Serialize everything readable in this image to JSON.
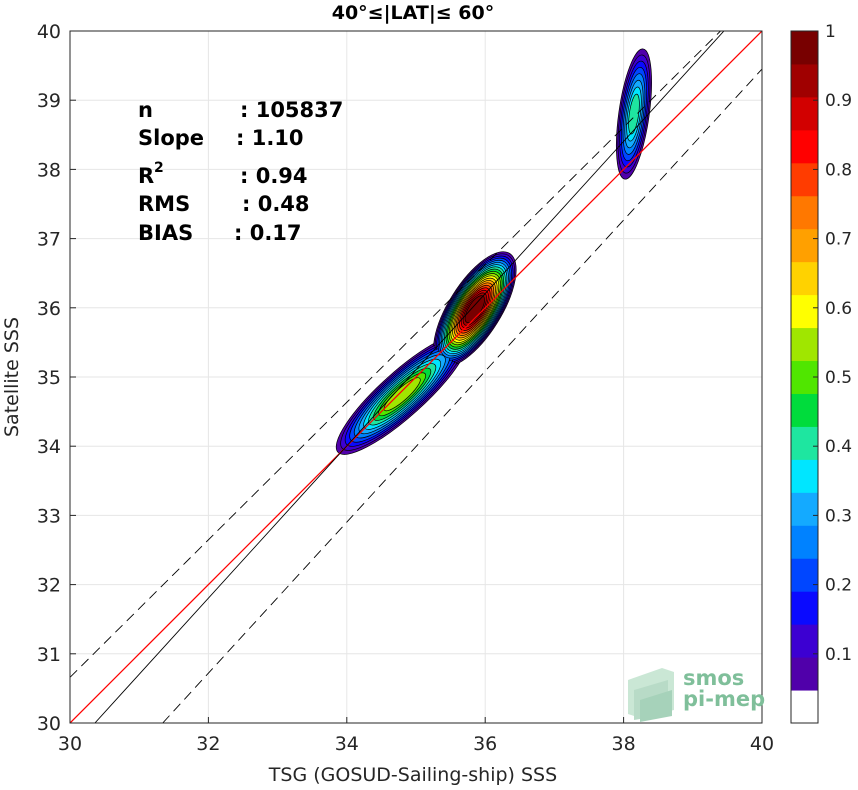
{
  "chart_data": {
    "type": "heatmap",
    "title": "40°≤|LAT|≤ 60°",
    "xlabel": "TSG (GOSUD-Sailing-ship) SSS",
    "ylabel": "Satellite SSS",
    "xlim": [
      30,
      40
    ],
    "ylim": [
      30,
      40
    ],
    "xticks": [
      "30",
      "32",
      "34",
      "36",
      "38",
      "40"
    ],
    "yticks": [
      "30",
      "31",
      "32",
      "33",
      "34",
      "35",
      "36",
      "37",
      "38",
      "39",
      "40"
    ],
    "grid": true,
    "stats": [
      {
        "label": "n",
        "value": ": 105837"
      },
      {
        "label": "Slope",
        "value": ": 1.10"
      },
      {
        "label": "R",
        "sup": "2",
        "value": ": 0.94"
      },
      {
        "label": "RMS",
        "value": ": 0.48"
      },
      {
        "label": "BIAS",
        "value": ": 0.17"
      }
    ],
    "lines": [
      {
        "name": "identity",
        "color": "#ff0000",
        "style": "solid",
        "points": [
          [
            30,
            30
          ],
          [
            40,
            40
          ]
        ]
      },
      {
        "name": "regression",
        "color": "#000000",
        "style": "solid",
        "points": [
          [
            30.36,
            30
          ],
          [
            39.45,
            40
          ]
        ]
      },
      {
        "name": "upper-bound",
        "color": "#000000",
        "style": "dashed",
        "points": [
          [
            30,
            30.66
          ],
          [
            39.4,
            40
          ]
        ]
      },
      {
        "name": "lower-bound",
        "color": "#000000",
        "style": "dashed",
        "points": [
          [
            31.34,
            30
          ],
          [
            40,
            39.45
          ]
        ]
      }
    ],
    "density_peaks": [
      {
        "x": 34.8,
        "y": 34.75,
        "peak": 0.55
      },
      {
        "x": 35.85,
        "y": 35.98,
        "peak": 0.98
      },
      {
        "x": 38.15,
        "y": 38.8,
        "peak": 0.38
      }
    ],
    "colorbar": {
      "min": 0,
      "max": 1,
      "ticks": [
        "0.1",
        "0.2",
        "0.3",
        "0.4",
        "0.5",
        "0.6",
        "0.7",
        "0.8",
        "0.9",
        "1"
      ],
      "levels": [
        "#ffffff",
        "#5000aa",
        "#3c00d2",
        "#0a0aff",
        "#0046ff",
        "#0082ff",
        "#14aaff",
        "#00e6ff",
        "#1ee6a0",
        "#00dc3c",
        "#50e600",
        "#a0e600",
        "#ffff00",
        "#ffd200",
        "#ffa000",
        "#ff7800",
        "#ff3c00",
        "#ff0000",
        "#d20000",
        "#a00000",
        "#780000"
      ]
    }
  },
  "logo": {
    "line1": "smos",
    "line2": "pi-mep"
  }
}
